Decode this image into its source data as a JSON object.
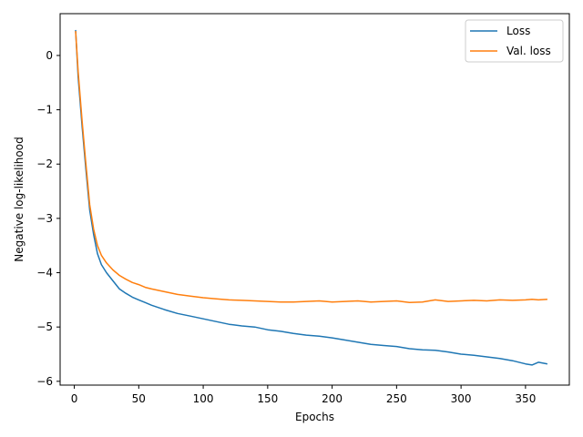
{
  "chart_data": {
    "type": "line",
    "xlabel": "Epochs",
    "ylabel": "Negative log-likelihood",
    "xlim": [
      -11,
      384
    ],
    "ylim": [
      -6.07,
      0.77
    ],
    "xticks": [
      0,
      50,
      100,
      150,
      200,
      250,
      300,
      350
    ],
    "yticks": [
      0,
      -1,
      -2,
      -3,
      -4,
      -5,
      -6
    ],
    "xtick_labels": [
      "0",
      "50",
      "100",
      "150",
      "200",
      "250",
      "300",
      "350"
    ],
    "ytick_labels": [
      "0",
      "−1",
      "−2",
      "−3",
      "−4",
      "−5",
      "−6"
    ],
    "grid": false,
    "legend_position": "top-right",
    "series": [
      {
        "name": "Loss",
        "color": "#1f77b4",
        "x": [
          1,
          3,
          6,
          9,
          12,
          15,
          18,
          21,
          25,
          30,
          35,
          40,
          45,
          50,
          55,
          60,
          70,
          80,
          90,
          100,
          110,
          120,
          130,
          140,
          150,
          160,
          170,
          180,
          190,
          200,
          210,
          220,
          230,
          240,
          250,
          260,
          270,
          280,
          290,
          300,
          310,
          320,
          330,
          340,
          350,
          355,
          360,
          367
        ],
        "y": [
          0.47,
          -0.4,
          -1.3,
          -2.1,
          -2.85,
          -3.3,
          -3.65,
          -3.85,
          -4.0,
          -4.15,
          -4.3,
          -4.38,
          -4.45,
          -4.5,
          -4.55,
          -4.6,
          -4.68,
          -4.75,
          -4.8,
          -4.85,
          -4.9,
          -4.95,
          -4.98,
          -5.0,
          -5.05,
          -5.08,
          -5.12,
          -5.15,
          -5.17,
          -5.2,
          -5.24,
          -5.28,
          -5.32,
          -5.34,
          -5.36,
          -5.4,
          -5.42,
          -5.43,
          -5.46,
          -5.5,
          -5.52,
          -5.55,
          -5.58,
          -5.62,
          -5.68,
          -5.7,
          -5.65,
          -5.68
        ]
      },
      {
        "name": "Val. loss",
        "color": "#ff7f0e",
        "x": [
          1,
          3,
          6,
          9,
          12,
          15,
          18,
          21,
          25,
          30,
          35,
          40,
          45,
          50,
          55,
          60,
          70,
          80,
          90,
          100,
          110,
          120,
          130,
          140,
          150,
          160,
          170,
          180,
          190,
          200,
          210,
          220,
          230,
          240,
          250,
          260,
          270,
          280,
          290,
          300,
          310,
          320,
          330,
          340,
          350,
          355,
          360,
          367
        ],
        "y": [
          0.45,
          -0.3,
          -1.2,
          -2.0,
          -2.75,
          -3.2,
          -3.5,
          -3.68,
          -3.82,
          -3.95,
          -4.05,
          -4.12,
          -4.18,
          -4.22,
          -4.27,
          -4.3,
          -4.35,
          -4.4,
          -4.43,
          -4.46,
          -4.48,
          -4.5,
          -4.51,
          -4.52,
          -4.53,
          -4.54,
          -4.54,
          -4.53,
          -4.52,
          -4.54,
          -4.53,
          -4.52,
          -4.54,
          -4.53,
          -4.52,
          -4.55,
          -4.54,
          -4.5,
          -4.53,
          -4.52,
          -4.51,
          -4.52,
          -4.5,
          -4.51,
          -4.5,
          -4.49,
          -4.5,
          -4.49
        ]
      }
    ]
  }
}
